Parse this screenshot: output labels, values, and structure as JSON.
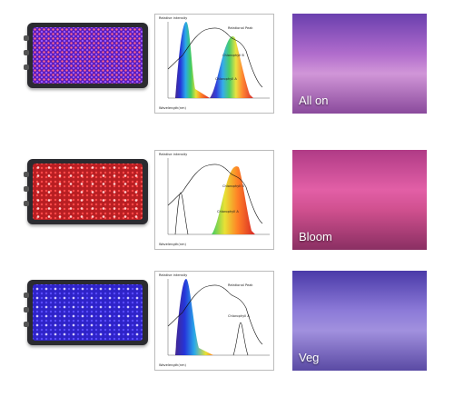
{
  "rows": [
    {
      "mode_label": "All on",
      "chart": {
        "y_label": "Relative intensity",
        "x_label": "Wavelength(nm)",
        "annot_top": "Relational Peak",
        "annot_mid": "Chlorophyll B",
        "annot_low": "Chlorophyll A"
      },
      "panel_color": "#6a1fd1",
      "photo_colors": [
        "#c67ad7",
        "#8e4f9f"
      ]
    },
    {
      "mode_label": "Bloom",
      "chart": {
        "y_label": "Relative intensity",
        "x_label": "Wavelength(nm)",
        "annot_top": "",
        "annot_mid": "Chlorophyll B",
        "annot_low": "Chlorophyll A"
      },
      "panel_color": "#c8282a",
      "photo_colors": [
        "#d54ba0",
        "#a03175"
      ]
    },
    {
      "mode_label": "Veg",
      "chart": {
        "y_label": "Relative intensity",
        "x_label": "Wavelength(nm)",
        "annot_top": "Relational Peak",
        "annot_mid": "",
        "annot_low": "Chlorophyll A"
      },
      "panel_color": "#3e2ae0",
      "photo_colors": [
        "#8a79d6",
        "#594aa6"
      ]
    }
  ],
  "y_ticks": [
    "1.0",
    "0.9",
    "0.8",
    "0.7",
    "0.6",
    "0.5",
    "0.4",
    "0.3",
    "0.2",
    "0.1",
    "0"
  ],
  "x_ticks": [
    "300",
    "380",
    "460",
    "540",
    "580",
    "620",
    "660",
    "700",
    "740",
    "780"
  ]
}
